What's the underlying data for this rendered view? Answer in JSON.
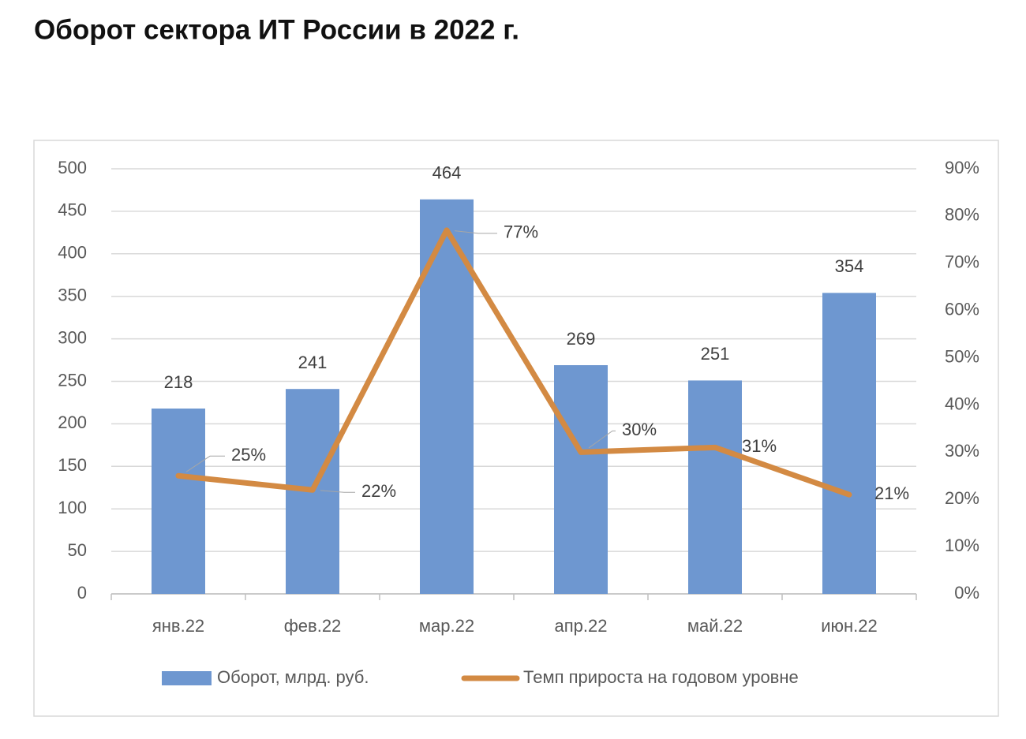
{
  "chart_data": {
    "type": "bar+line",
    "title": "Оборот сектора ИТ России в 2022 г.",
    "categories": [
      "янв.22",
      "фев.22",
      "мар.22",
      "апр.22",
      "май.22",
      "июн.22"
    ],
    "series": [
      {
        "name": "Оборот, млрд. руб.",
        "type": "bar",
        "color": "#6e97d0",
        "values": [
          218,
          241,
          464,
          269,
          251,
          354
        ]
      },
      {
        "name": "Темп прироста на годовом уровне",
        "type": "line",
        "axis": "y2",
        "color": "#d38a43",
        "values": [
          25,
          22,
          77,
          30,
          31,
          21
        ],
        "value_labels": [
          "25%",
          "22%",
          "77%",
          "30%",
          "31%",
          "21%"
        ]
      }
    ],
    "ylim": [
      0,
      500
    ],
    "yticks": [
      0,
      50,
      100,
      150,
      200,
      250,
      300,
      350,
      400,
      450,
      500
    ],
    "y2lim": [
      0,
      90
    ],
    "y2ticks": [
      {
        "value": 0,
        "label": "0%"
      },
      {
        "value": 10,
        "label": "10%"
      },
      {
        "value": 20,
        "label": "20%"
      },
      {
        "value": 30,
        "label": "30%"
      },
      {
        "value": 40,
        "label": "40%"
      },
      {
        "value": 50,
        "label": "50%"
      },
      {
        "value": 60,
        "label": "60%"
      },
      {
        "value": 70,
        "label": "70%"
      },
      {
        "value": 80,
        "label": "80%"
      },
      {
        "value": 90,
        "label": "90%"
      }
    ],
    "grid": true,
    "legend": "bottom"
  }
}
